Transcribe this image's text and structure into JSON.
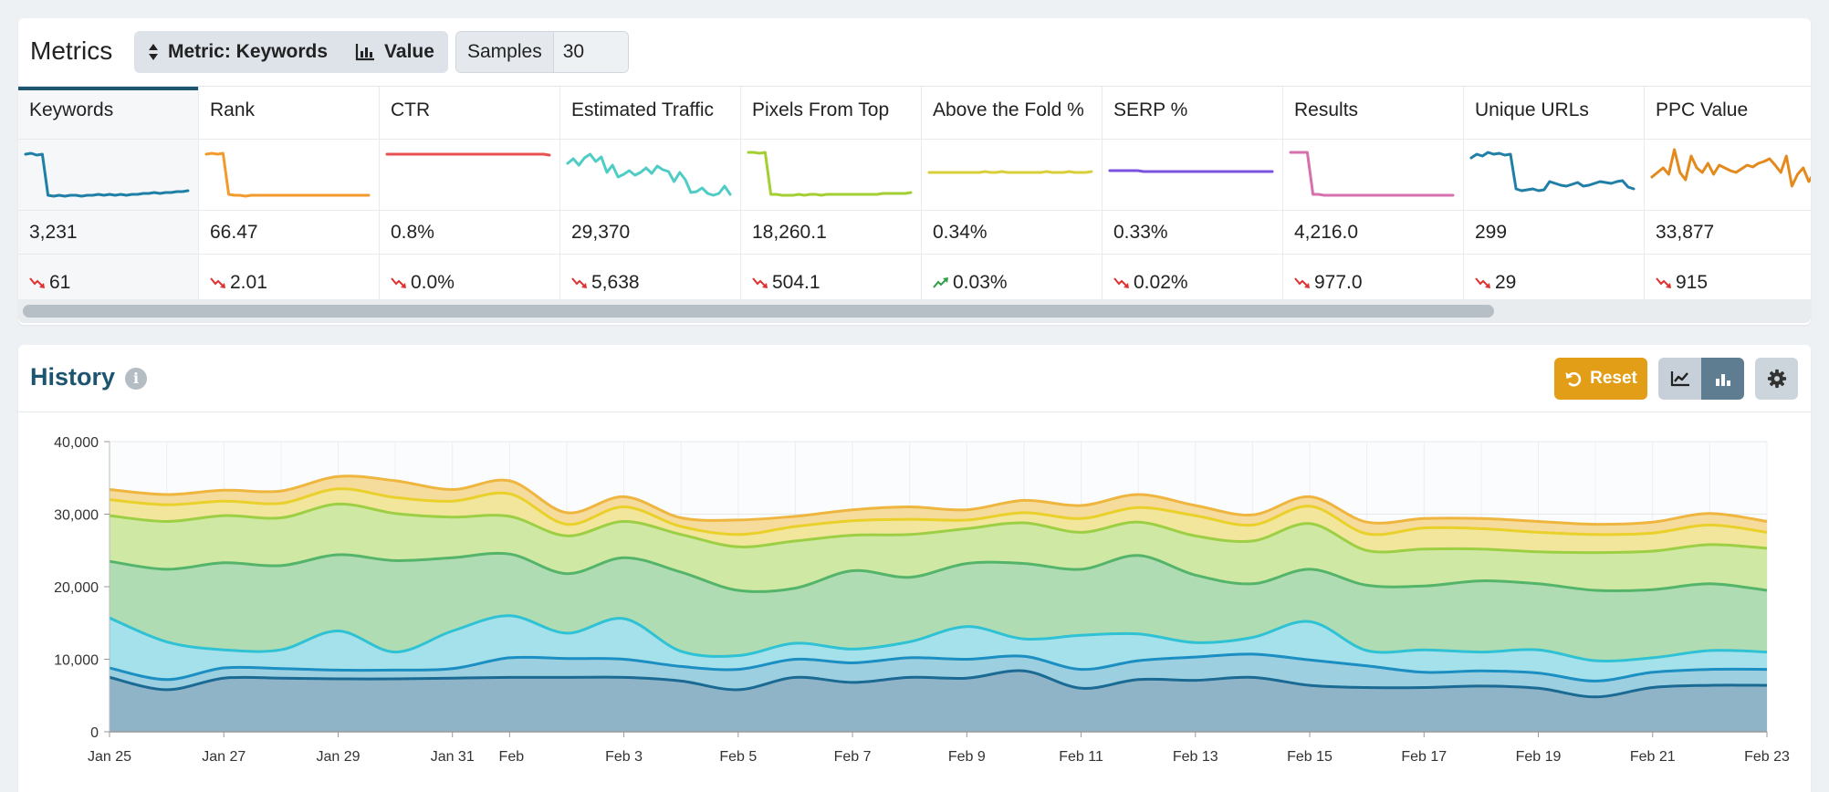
{
  "metrics": {
    "title": "Metrics",
    "metric_button_label": "Metric: Keywords",
    "value_button_label": "Value",
    "samples_label": "Samples",
    "samples_value": "30",
    "columns": [
      {
        "name": "Keywords",
        "value": "3,231",
        "change": "61",
        "trend": "down",
        "color": "#1f7fa6",
        "active": true,
        "spark": [
          50,
          51,
          49,
          50,
          5,
          4,
          5,
          4,
          5,
          5,
          4,
          5,
          5,
          6,
          5,
          6,
          5,
          6,
          5,
          6,
          6,
          7,
          7,
          8,
          7,
          8,
          8,
          9,
          9,
          10
        ]
      },
      {
        "name": "Rank",
        "value": "66.47",
        "change": "2.01",
        "trend": "down",
        "color": "#f39a2c",
        "active": false,
        "spark": [
          50,
          51,
          50,
          51,
          6,
          5,
          5,
          4,
          5,
          5,
          5,
          5,
          5,
          5,
          5,
          5,
          5,
          5,
          5,
          5,
          5,
          5,
          5,
          5,
          5,
          5,
          5,
          5,
          5,
          5
        ]
      },
      {
        "name": "CTR",
        "value": "0.8%",
        "change": "0.0%",
        "trend": "down",
        "color": "#e85151",
        "active": false,
        "spark": [
          50,
          50,
          50,
          50,
          50,
          50,
          50,
          50,
          50,
          50,
          50,
          50,
          50,
          50,
          50,
          50,
          50,
          50,
          50,
          50,
          50,
          50,
          50,
          50,
          50,
          50,
          50,
          50,
          50,
          49
        ]
      },
      {
        "name": "Estimated Traffic",
        "value": "29,370",
        "change": "5,638",
        "trend": "down",
        "color": "#4fcdc5",
        "active": false,
        "spark": [
          40,
          45,
          38,
          46,
          50,
          42,
          47,
          30,
          38,
          25,
          28,
          32,
          27,
          30,
          35,
          29,
          37,
          33,
          31,
          20,
          30,
          22,
          8,
          9,
          13,
          7,
          5,
          7,
          15,
          6
        ]
      },
      {
        "name": "Pixels From Top",
        "value": "18,260.1",
        "change": "504.1",
        "trend": "down",
        "color": "#a3cf32",
        "active": false,
        "spark": [
          52,
          52,
          51,
          52,
          6,
          6,
          5,
          5,
          5,
          6,
          5,
          6,
          6,
          5,
          6,
          6,
          6,
          6,
          6,
          6,
          6,
          6,
          6,
          6,
          7,
          7,
          7,
          7,
          7,
          8
        ]
      },
      {
        "name": "Above the Fold %",
        "value": "0.34%",
        "change": "0.03%",
        "trend": "up",
        "color": "#d9cf3a",
        "active": false,
        "spark": [
          30,
          30,
          30,
          30,
          30,
          30,
          30,
          30,
          30,
          30,
          31,
          30,
          30,
          31,
          30,
          30,
          30,
          30,
          30,
          30,
          30,
          31,
          30,
          30,
          30,
          31,
          30,
          30,
          30,
          31
        ]
      },
      {
        "name": "SERP %",
        "value": "0.33%",
        "change": "0.02%",
        "trend": "down",
        "color": "#7a52e0",
        "active": false,
        "spark": [
          32,
          32,
          32,
          32,
          32,
          32,
          31,
          31,
          31,
          31,
          31,
          31,
          31,
          31,
          31,
          31,
          31,
          31,
          31,
          31,
          31,
          31,
          31,
          31,
          31,
          31,
          31,
          31,
          31,
          31
        ]
      },
      {
        "name": "Results",
        "value": "4,216.0",
        "change": "977.0",
        "trend": "down",
        "color": "#d671ad",
        "active": false,
        "spark": [
          52,
          52,
          52,
          52,
          6,
          6,
          5,
          5,
          5,
          5,
          5,
          5,
          5,
          5,
          5,
          5,
          5,
          5,
          5,
          5,
          5,
          5,
          5,
          5,
          5,
          5,
          5,
          5,
          5,
          5
        ]
      },
      {
        "name": "Unique URLs",
        "value": "299",
        "change": "29",
        "trend": "down",
        "color": "#1f7fa6",
        "active": false,
        "spark": [
          46,
          50,
          48,
          52,
          50,
          51,
          49,
          50,
          12,
          10,
          11,
          12,
          10,
          11,
          20,
          18,
          16,
          15,
          17,
          19,
          15,
          16,
          18,
          20,
          19,
          18,
          20,
          21,
          14,
          12
        ]
      },
      {
        "name": "PPC Value",
        "value": "33,877",
        "change": "915",
        "trend": "down",
        "color": "#e48a1d",
        "active": false,
        "spark": [
          25,
          30,
          35,
          28,
          55,
          30,
          22,
          48,
          35,
          30,
          40,
          28,
          38,
          35,
          32,
          30,
          34,
          38,
          36,
          40,
          42,
          45,
          38,
          30,
          48,
          15,
          28,
          35,
          20,
          30
        ]
      }
    ]
  },
  "history": {
    "title": "History",
    "reset_label": "Reset",
    "info_icon": "info-icon",
    "chart_data": {
      "type": "area",
      "stacked": true,
      "ylim": [
        0,
        40000
      ],
      "yticks": [
        "0",
        "10,000",
        "20,000",
        "30,000",
        "40,000"
      ],
      "ytick_values": [
        0,
        10000,
        20000,
        30000,
        40000
      ],
      "xticks": [
        {
          "label": "Jan 25",
          "i": 0
        },
        {
          "label": "Jan 27",
          "i": 2
        },
        {
          "label": "Jan 29",
          "i": 4
        },
        {
          "label": "Jan 31",
          "i": 6
        },
        {
          "label": "Feb",
          "i": 7
        },
        {
          "label": "Feb 3",
          "i": 9
        },
        {
          "label": "Feb 5",
          "i": 11
        },
        {
          "label": "Feb 7",
          "i": 13
        },
        {
          "label": "Feb 9",
          "i": 15
        },
        {
          "label": "Feb 11",
          "i": 17
        },
        {
          "label": "Feb 13",
          "i": 19
        },
        {
          "label": "Feb 15",
          "i": 21
        },
        {
          "label": "Feb 17",
          "i": 23
        },
        {
          "label": "Feb 19",
          "i": 25
        },
        {
          "label": "Feb 21",
          "i": 27
        },
        {
          "label": "Feb 23",
          "i": 29
        }
      ],
      "grid": true,
      "series_cumulative": [
        {
          "line": "#1a6a93",
          "fill": "#8fb4c8",
          "values": [
            7500,
            5800,
            7400,
            7400,
            7300,
            7300,
            7400,
            7500,
            7500,
            7500,
            7000,
            5800,
            7500,
            6800,
            7500,
            7400,
            8400,
            6000,
            7200,
            7100,
            7500,
            6400,
            6100,
            6100,
            6300,
            6000,
            4800,
            6100,
            6400,
            6400
          ]
        },
        {
          "line": "#1b8ec2",
          "fill": "#9ccfe0",
          "values": [
            8800,
            7200,
            8800,
            8700,
            8500,
            8500,
            8700,
            10200,
            10100,
            10000,
            9000,
            8600,
            10000,
            9500,
            10200,
            10000,
            10400,
            8600,
            9800,
            10300,
            10700,
            9900,
            9100,
            8200,
            8400,
            8100,
            7000,
            8200,
            8600,
            8600
          ]
        },
        {
          "line": "#2fc1d4",
          "fill": "#a5e1ea",
          "values": [
            15700,
            12400,
            11300,
            11300,
            13900,
            11000,
            13900,
            16000,
            13600,
            15600,
            11100,
            10500,
            12200,
            11400,
            12400,
            14500,
            12800,
            13300,
            13500,
            12300,
            13000,
            15200,
            11200,
            11300,
            11000,
            11300,
            9800,
            10200,
            11200,
            11000
          ]
        },
        {
          "line": "#54b56a",
          "fill": "#b0dcb3",
          "values": [
            23500,
            22400,
            23300,
            22900,
            24400,
            23600,
            24000,
            24500,
            21800,
            24000,
            22000,
            19500,
            19800,
            22200,
            21300,
            23200,
            23200,
            22400,
            24300,
            21600,
            20400,
            22400,
            20200,
            20100,
            20800,
            20400,
            19500,
            19600,
            20400,
            19500
          ]
        },
        {
          "line": "#9dcf45",
          "fill": "#cfe8a3",
          "values": [
            29800,
            29000,
            29800,
            29500,
            31400,
            30100,
            29600,
            29700,
            27000,
            29000,
            27200,
            25500,
            26300,
            27100,
            27200,
            28000,
            28800,
            27500,
            28900,
            27000,
            26300,
            28700,
            25000,
            25200,
            25200,
            24800,
            24700,
            24900,
            25800,
            25300
          ]
        },
        {
          "line": "#ead02a",
          "fill": "#f2e69c",
          "values": [
            32000,
            31300,
            31800,
            31500,
            33500,
            32300,
            31800,
            32800,
            28600,
            31000,
            28300,
            27200,
            28300,
            29100,
            29300,
            29200,
            30200,
            29400,
            30900,
            29800,
            28500,
            31100,
            27300,
            28100,
            28000,
            27500,
            27200,
            27400,
            28500,
            27500
          ]
        },
        {
          "line": "#efb63f",
          "fill": "#f5dc9c",
          "values": [
            33400,
            32700,
            33300,
            33200,
            35200,
            34600,
            33400,
            34600,
            30200,
            32400,
            29500,
            29200,
            29700,
            30600,
            31000,
            30600,
            31900,
            31200,
            32700,
            31200,
            29900,
            32400,
            28900,
            29400,
            29400,
            29000,
            28600,
            28900,
            30100,
            29000
          ]
        }
      ]
    }
  }
}
